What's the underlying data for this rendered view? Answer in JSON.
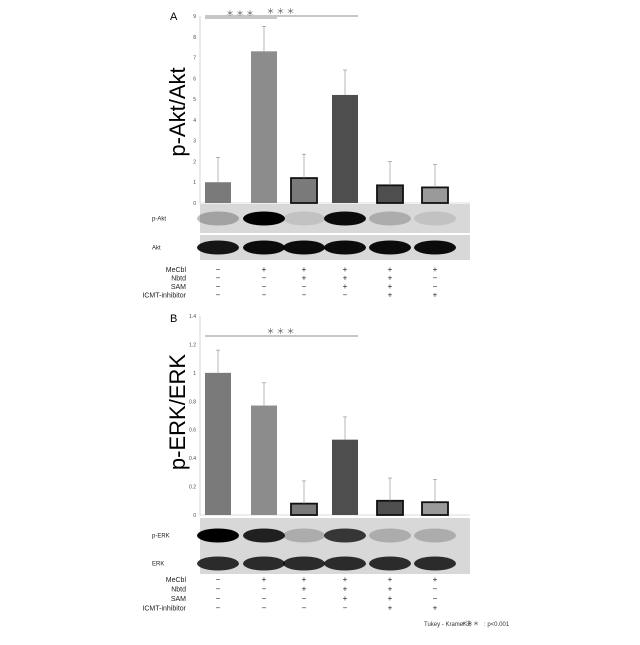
{
  "footnote": {
    "test": "Tukey - Kramer法",
    "stars": "＊＊＊",
    "p": ": p<0.001"
  },
  "conditions": {
    "labels": [
      "MeCbl",
      "Nbtd",
      "SAM",
      "ICMT-inhibitor"
    ],
    "signs": [
      [
        "−",
        "+",
        "+",
        "+",
        "+",
        "+"
      ],
      [
        "−",
        "−",
        "+",
        "+",
        "+",
        "−"
      ],
      [
        "−",
        "−",
        "−",
        "+",
        "+",
        "−"
      ],
      [
        "−",
        "−",
        "−",
        "−",
        "+",
        "+"
      ]
    ]
  },
  "colors": {
    "bars": [
      "#7a7a7a",
      "#8c8c8c",
      "#7a7a7a",
      "#4e4e4e",
      "#4e4e4e",
      "#9a9a9a"
    ],
    "outlined": [
      false,
      false,
      true,
      false,
      true,
      true
    ]
  },
  "chart_data": [
    {
      "type": "bar",
      "panel": "A",
      "ylabel": "p-Akt/Akt",
      "ylim": [
        0,
        9
      ],
      "yticks": [
        0,
        1,
        2,
        3,
        4,
        5,
        6,
        7,
        8,
        9
      ],
      "values": [
        1.0,
        7.3,
        1.2,
        5.2,
        0.85,
        0.75
      ],
      "errors": [
        1.2,
        1.2,
        1.15,
        1.2,
        1.15,
        1.1
      ],
      "significance": [
        {
          "from": 0,
          "to": 1,
          "label": "＊＊＊"
        },
        {
          "from": 0,
          "to": 3,
          "label": "＊＊＊"
        }
      ],
      "blots": [
        {
          "label": "p-Akt",
          "intensity": [
            0.25,
            1.0,
            0.1,
            0.95,
            0.2,
            0.1
          ]
        },
        {
          "label": "Akt",
          "intensity": [
            0.9,
            0.95,
            0.95,
            0.95,
            0.95,
            0.95
          ]
        }
      ]
    },
    {
      "type": "bar",
      "panel": "B",
      "ylabel": "p-ERK/ERK",
      "ylim": [
        0,
        1.4
      ],
      "yticks": [
        "0",
        "0.2",
        "0.4",
        "0.6",
        "0.8",
        "1",
        "1.2",
        "1.4"
      ],
      "values": [
        1.0,
        0.77,
        0.08,
        0.53,
        0.1,
        0.09
      ],
      "errors": [
        0.16,
        0.16,
        0.16,
        0.16,
        0.16,
        0.16
      ],
      "significance": [
        {
          "from": 0,
          "to": 3,
          "label": "＊＊＊"
        }
      ],
      "blots": [
        {
          "label": "p-ERK",
          "intensity": [
            1.0,
            0.85,
            0.2,
            0.75,
            0.2,
            0.2
          ]
        },
        {
          "label": "ERK",
          "intensity": [
            0.8,
            0.8,
            0.8,
            0.8,
            0.8,
            0.8
          ]
        }
      ]
    }
  ]
}
